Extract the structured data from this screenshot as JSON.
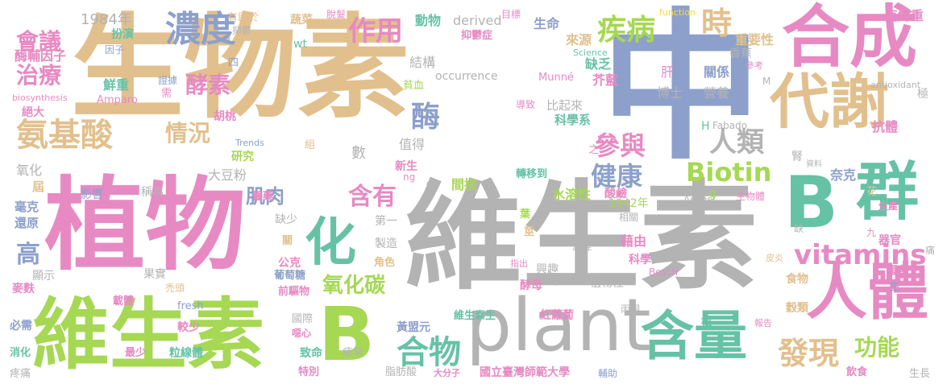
{
  "words": [
    {
      "text": "生物素",
      "color": "#e2c08d"
    },
    {
      "text": "中",
      "color": "#8da0cb"
    },
    {
      "text": "植物",
      "color": "#e78ac3"
    },
    {
      "text": "維生素",
      "color": "#b3b3b3"
    },
    {
      "text": "維生素",
      "color": "#a6d854"
    },
    {
      "text": "B",
      "color": "#a6d854"
    },
    {
      "text": "B",
      "color": "#66c2a5"
    },
    {
      "text": "plant",
      "color": "#b3b3b3"
    },
    {
      "text": "合成",
      "color": "#e78ac3"
    },
    {
      "text": "代謝",
      "color": "#e2c08d"
    },
    {
      "text": "群",
      "color": "#66c2a5"
    },
    {
      "text": "人體",
      "color": "#e78ac3"
    },
    {
      "text": "含量",
      "color": "#66c2a5"
    },
    {
      "text": "化",
      "color": "#66c2a5"
    },
    {
      "text": "濃度",
      "color": "#8da0cb"
    },
    {
      "text": "氨基酸",
      "color": "#e2c08d"
    },
    {
      "text": "酵素",
      "color": "#e78ac3"
    },
    {
      "text": "情況",
      "color": "#e2c08d"
    },
    {
      "text": "酶",
      "color": "#8da0cb"
    },
    {
      "text": "疾病",
      "color": "#a6d854"
    },
    {
      "text": "作用",
      "color": "#e78ac3"
    },
    {
      "text": "時",
      "color": "#e2c08d"
    },
    {
      "text": "Biotin",
      "color": "#a6d854"
    },
    {
      "text": "健康",
      "color": "#8da0cb"
    },
    {
      "text": "參與",
      "color": "#e78ac3"
    },
    {
      "text": "人類",
      "color": "#b3b3b3"
    },
    {
      "text": "vitamins",
      "color": "#e78ac3"
    },
    {
      "text": "含有",
      "color": "#e78ac3"
    },
    {
      "text": "肌肉",
      "color": "#8da0cb"
    },
    {
      "text": "氧化碳",
      "color": "#a6d854"
    },
    {
      "text": "合物",
      "color": "#66c2a5"
    },
    {
      "text": "發現",
      "color": "#e2c08d"
    },
    {
      "text": "功能",
      "color": "#a6d854"
    },
    {
      "text": "會議",
      "color": "#e78ac3"
    },
    {
      "text": "治療",
      "color": "#e78ac3"
    },
    {
      "text": "高",
      "color": "#8da0cb"
    },
    {
      "text": "酶輔因子",
      "color": "#e78ac3"
    },
    {
      "text": "1984年",
      "color": "#b3b3b3"
    },
    {
      "text": "有助於",
      "color": "#e2c08d"
    },
    {
      "text": "抑鬱",
      "color": "#b3b3b3"
    },
    {
      "text": "蔬菜",
      "color": "#e2c08d"
    },
    {
      "text": "脫髮",
      "color": "#e78ac3"
    },
    {
      "text": "動物",
      "color": "#66c2a5"
    },
    {
      "text": "derived",
      "color": "#b3b3b3"
    },
    {
      "text": "目標",
      "color": "#e78ac3"
    },
    {
      "text": "生命",
      "color": "#8da0cb"
    },
    {
      "text": "function",
      "color": "#ffd92f"
    },
    {
      "text": "克鮮重",
      "color": "#e78ac3"
    },
    {
      "text": "扮演",
      "color": "#66c2a5"
    },
    {
      "text": "因子",
      "color": "#8da0cb"
    },
    {
      "text": "抑鬱症",
      "color": "#e78ac3"
    },
    {
      "text": "來源",
      "color": "#e2c08d"
    },
    {
      "text": "重要性",
      "color": "#e2c08d"
    },
    {
      "text": "香蕉",
      "color": "#b3b3b3"
    },
    {
      "text": "wt",
      "color": "#66c2a5"
    },
    {
      "text": "四",
      "color": "#8da0cb"
    },
    {
      "text": "結構",
      "color": "#b3b3b3"
    },
    {
      "text": "Science",
      "color": "#66c2a5"
    },
    {
      "text": "缺乏",
      "color": "#66c2a5"
    },
    {
      "text": "芥藍",
      "color": "#e78ac3"
    },
    {
      "text": "參考",
      "color": "#e78ac3"
    },
    {
      "text": "鮮重",
      "color": "#66c2a5"
    },
    {
      "text": "證據",
      "color": "#8da0cb"
    },
    {
      "text": "需",
      "color": "#e78ac3"
    },
    {
      "text": "biosynthesis",
      "color": "#e78ac3"
    },
    {
      "text": "Amparo",
      "color": "#e78ac3"
    },
    {
      "text": "貧血",
      "color": "#a6d854"
    },
    {
      "text": "occurrence",
      "color": "#b3b3b3"
    },
    {
      "text": "Munné",
      "color": "#e78ac3"
    },
    {
      "text": "肝",
      "color": "#e78ac3"
    },
    {
      "text": "關係",
      "color": "#8da0cb"
    },
    {
      "text": "M",
      "color": "#b3b3b3"
    },
    {
      "text": "antioxidant",
      "color": "#b3b3b3"
    },
    {
      "text": "絕大",
      "color": "#e78ac3"
    },
    {
      "text": "比起來",
      "color": "#b3b3b3"
    },
    {
      "text": "導致",
      "color": "#e78ac3"
    },
    {
      "text": "博士",
      "color": "#b3b3b3"
    },
    {
      "text": "營養",
      "color": "#b3b3b3"
    },
    {
      "text": "極",
      "color": "#b3b3b3"
    },
    {
      "text": "胡桃",
      "color": "#e78ac3"
    },
    {
      "text": "科學系",
      "color": "#66c2a5"
    },
    {
      "text": "抗體",
      "color": "#e78ac3"
    },
    {
      "text": "H",
      "color": "#66c2a5"
    },
    {
      "text": "Fabado",
      "color": "#b3b3b3"
    },
    {
      "text": "Trends",
      "color": "#8da0cb"
    },
    {
      "text": "研究",
      "color": "#a6d854"
    },
    {
      "text": "組",
      "color": "#e2c08d"
    },
    {
      "text": "數",
      "color": "#b3b3b3"
    },
    {
      "text": "值得",
      "color": "#b3b3b3"
    },
    {
      "text": "之",
      "color": "#e78ac3"
    },
    {
      "text": "氧化",
      "color": "#b3b3b3"
    },
    {
      "text": "屆",
      "color": "#e2c08d"
    },
    {
      "text": "大豆粉",
      "color": "#b3b3b3"
    },
    {
      "text": "新生",
      "color": "#e78ac3"
    },
    {
      "text": "ng",
      "color": "#e78ac3"
    },
    {
      "text": "轉移到",
      "color": "#66c2a5"
    },
    {
      "text": "腎",
      "color": "#b3b3b3"
    },
    {
      "text": "資料",
      "color": "#b3b3b3"
    },
    {
      "text": "奈克",
      "color": "#8da0cb"
    },
    {
      "text": "影響",
      "color": "#8da0cb"
    },
    {
      "text": "稱為",
      "color": "#b3b3b3"
    },
    {
      "text": "提",
      "color": "#b3b3b3"
    },
    {
      "text": "間接",
      "color": "#a6d854"
    },
    {
      "text": "水溶性",
      "color": "#a6d854"
    },
    {
      "text": "酸鹼",
      "color": "#e78ac3"
    },
    {
      "text": "g",
      "color": "#a6d854"
    },
    {
      "text": "生物體",
      "color": "#e78ac3"
    },
    {
      "text": "花",
      "color": "#e2c08d"
    },
    {
      "text": "毫克",
      "color": "#8da0cb"
    },
    {
      "text": "還原",
      "color": "#8da0cb"
    },
    {
      "text": "醫藥",
      "color": "#e78ac3"
    },
    {
      "text": "缺少",
      "color": "#b3b3b3"
    },
    {
      "text": "第一",
      "color": "#b3b3b3"
    },
    {
      "text": "1942年",
      "color": "#a6d854"
    },
    {
      "text": "Asensi",
      "color": "#b3b3b3"
    },
    {
      "text": "生產",
      "color": "#e78ac3"
    },
    {
      "text": "相關",
      "color": "#b3b3b3"
    },
    {
      "text": "葉",
      "color": "#a6d854"
    },
    {
      "text": "缺",
      "color": "#b3b3b3"
    },
    {
      "text": "九",
      "color": "#e78ac3"
    },
    {
      "text": "器官",
      "color": "#e78ac3"
    },
    {
      "text": "關",
      "color": "#e2c08d"
    },
    {
      "text": "製造",
      "color": "#b3b3b3"
    },
    {
      "text": "莖",
      "color": "#e2c08d"
    },
    {
      "text": "減輕",
      "color": "#b3b3b3"
    },
    {
      "text": "藉由",
      "color": "#e78ac3"
    },
    {
      "text": "痛",
      "color": "#b3b3b3"
    },
    {
      "text": "顯示",
      "color": "#b3b3b3"
    },
    {
      "text": "果實",
      "color": "#b3b3b3"
    },
    {
      "text": "公克",
      "color": "#e78ac3"
    },
    {
      "text": "角色",
      "color": "#e2c08d"
    },
    {
      "text": "指出",
      "color": "#e78ac3"
    },
    {
      "text": "科學",
      "color": "#e78ac3"
    },
    {
      "text": "皮炎",
      "color": "#e2c08d"
    },
    {
      "text": "蛋黃",
      "color": "#e78ac3"
    },
    {
      "text": "麥麩",
      "color": "#e78ac3"
    },
    {
      "text": "葡萄糖",
      "color": "#8da0cb"
    },
    {
      "text": "Sergi",
      "color": "#b3b3b3"
    },
    {
      "text": "Bosch",
      "color": "#e78ac3"
    },
    {
      "text": "食物",
      "color": "#e2c08d"
    },
    {
      "text": "生",
      "color": "#8da0cb"
    },
    {
      "text": "禿頭",
      "color": "#e2c08d"
    },
    {
      "text": "前驅物",
      "color": "#e78ac3"
    },
    {
      "text": "興趣",
      "color": "#b3b3b3"
    },
    {
      "text": "酵母",
      "color": "#e78ac3"
    },
    {
      "text": "植物性",
      "color": "#b3b3b3"
    },
    {
      "text": "載體",
      "color": "#e78ac3"
    },
    {
      "text": "fresh",
      "color": "#8da0cb"
    },
    {
      "text": "丙酮",
      "color": "#b3b3b3"
    },
    {
      "text": "穀類",
      "color": "#e2c08d"
    },
    {
      "text": "較少",
      "color": "#e78ac3"
    },
    {
      "text": "國際",
      "color": "#b3b3b3"
    },
    {
      "text": "黃盟元",
      "color": "#8da0cb"
    },
    {
      "text": "維生素生",
      "color": "#66c2a5"
    },
    {
      "text": "紅蘿蔔",
      "color": "#e78ac3"
    },
    {
      "text": "根",
      "color": "#66c2a5"
    },
    {
      "text": "報告",
      "color": "#e78ac3"
    },
    {
      "text": "必需",
      "color": "#8da0cb"
    },
    {
      "text": "噁心",
      "color": "#e78ac3"
    },
    {
      "text": "致命",
      "color": "#66c2a5"
    },
    {
      "text": "疲勞",
      "color": "#b3b3b3"
    },
    {
      "text": "消化",
      "color": "#66c2a5"
    },
    {
      "text": "最少",
      "color": "#e78ac3"
    },
    {
      "text": "粒線體",
      "color": "#66c2a5"
    },
    {
      "text": "飲食",
      "color": "#e78ac3"
    },
    {
      "text": "疼痛",
      "color": "#b3b3b3"
    },
    {
      "text": "特別",
      "color": "#e78ac3"
    },
    {
      "text": "脂肪酸",
      "color": "#b3b3b3"
    },
    {
      "text": "大分子",
      "color": "#e78ac3"
    },
    {
      "text": "國立臺灣師範大學",
      "color": "#e78ac3"
    },
    {
      "text": "輔助",
      "color": "#8da0cb"
    },
    {
      "text": "生長",
      "color": "#b3b3b3"
    }
  ]
}
